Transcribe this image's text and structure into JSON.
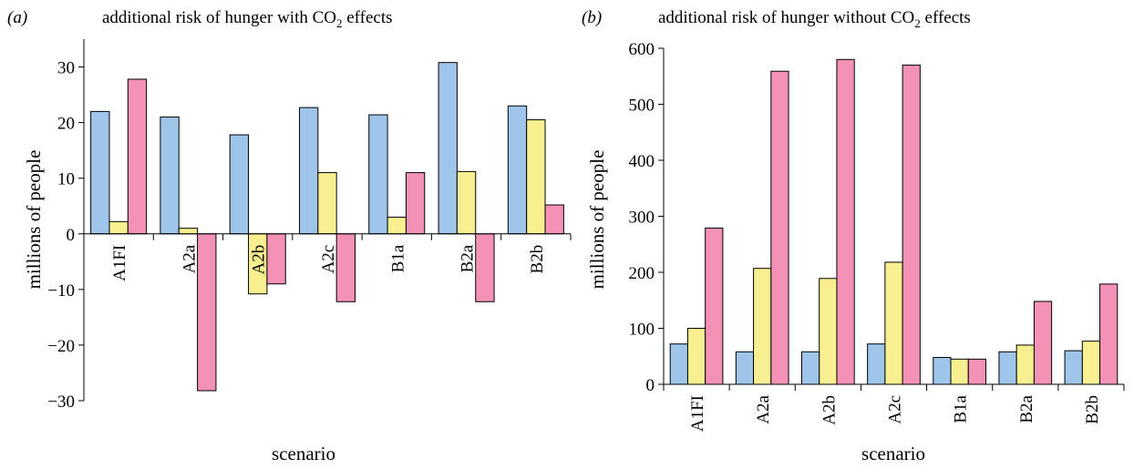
{
  "chart_data": [
    {
      "type": "bar",
      "panel": "(a)",
      "title": "additional risk of hunger with CO₂ effects",
      "xlabel": "scenario",
      "ylabel": "millions of people",
      "ylim": [
        -30,
        35
      ],
      "yticks": [
        -30,
        -20,
        -10,
        0,
        10,
        20,
        30
      ],
      "ytick_labels": [
        "−30",
        "−20",
        "−10",
        "0",
        "10",
        "20",
        "30"
      ],
      "categories": [
        "A1FI",
        "A2a",
        "A2b",
        "A2c",
        "B1a",
        "B2a",
        "B2b"
      ],
      "series": [
        {
          "color": "#9dc6ea",
          "values": [
            22,
            21,
            17.8,
            22.7,
            21.4,
            30.8,
            23
          ]
        },
        {
          "color": "#f8f090",
          "values": [
            2.2,
            1,
            -10.8,
            11,
            3,
            11.2,
            20.5
          ]
        },
        {
          "color": "#f391b7",
          "values": [
            27.8,
            -28.2,
            -9,
            -12.2,
            11,
            -12.2,
            5.2
          ]
        }
      ],
      "grid": false,
      "legend": "none"
    },
    {
      "type": "bar",
      "panel": "(b)",
      "title": "additional risk of hunger without CO₂ effects",
      "xlabel": "scenario",
      "ylabel": "millions of people",
      "ylim": [
        0,
        600
      ],
      "yticks": [
        0,
        100,
        200,
        300,
        400,
        500,
        600
      ],
      "ytick_labels": [
        "0",
        "100",
        "200",
        "300",
        "400",
        "500",
        "600"
      ],
      "categories": [
        "A1FI",
        "A2a",
        "A2b",
        "A2c",
        "B1a",
        "B2a",
        "B2b"
      ],
      "series": [
        {
          "color": "#9dc6ea",
          "values": [
            72,
            58,
            58,
            72,
            48,
            58,
            60
          ]
        },
        {
          "color": "#f8f090",
          "values": [
            100,
            207,
            189,
            218,
            45,
            70,
            77
          ]
        },
        {
          "color": "#f391b7",
          "values": [
            279,
            559,
            580,
            570,
            45,
            148,
            179
          ]
        }
      ],
      "grid": false,
      "legend": "none"
    }
  ]
}
